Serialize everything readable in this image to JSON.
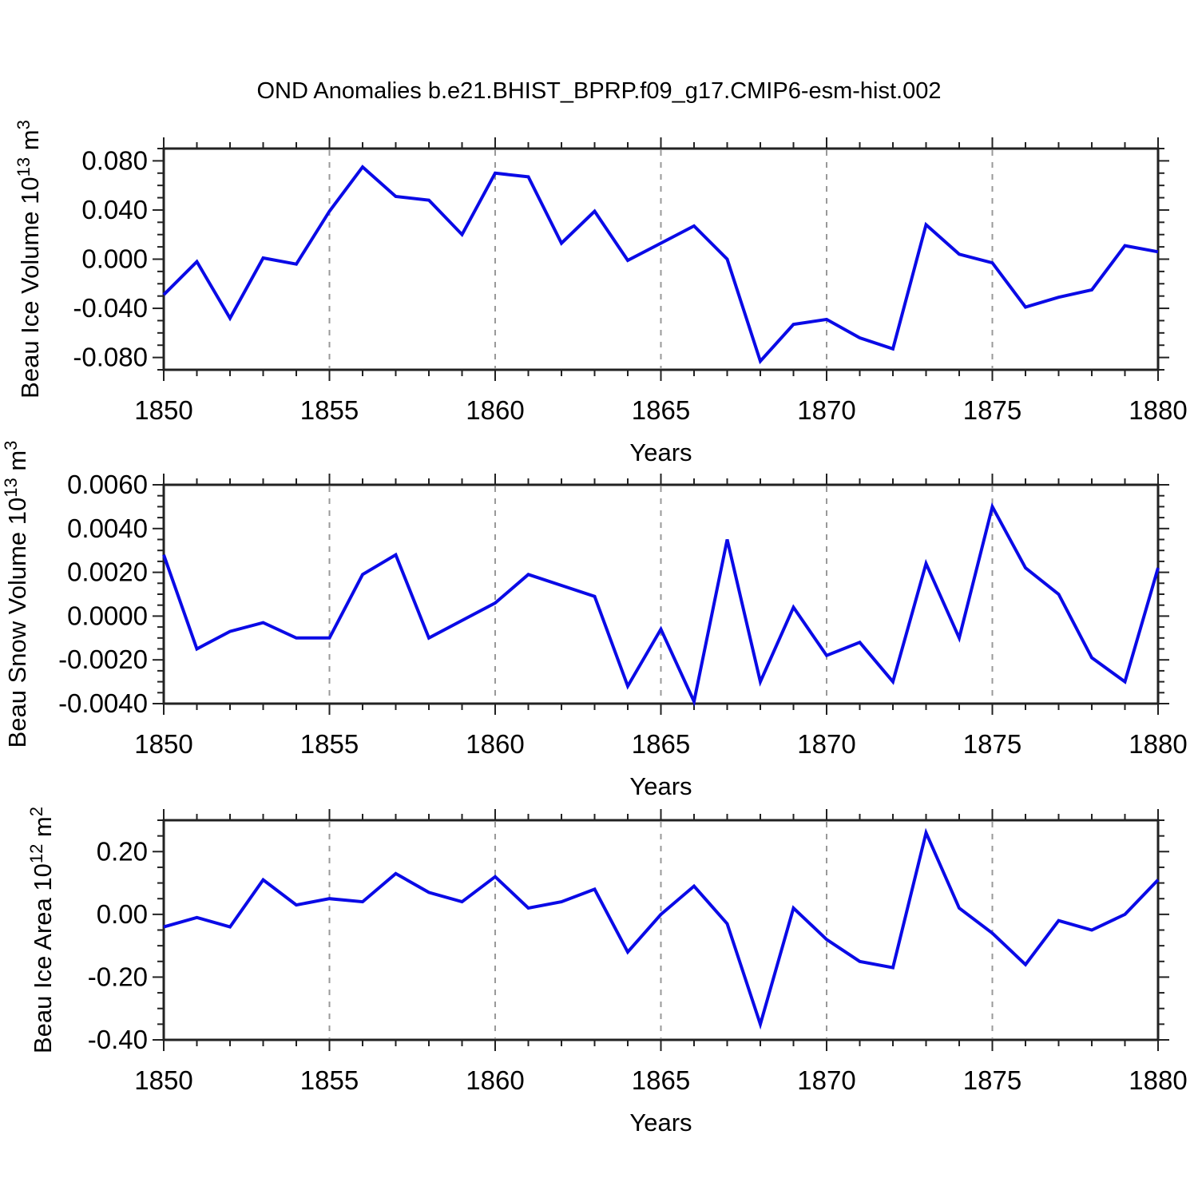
{
  "title": "OND Anomalies b.e21.BHIST_BPRP.f09_g17.CMIP6-esm-hist.002",
  "colors": {
    "line": "#0a0ae6",
    "grid": "#999999",
    "axis": "#222222",
    "text": "#000000"
  },
  "chart_data": {
    "type": "line",
    "title": "OND Anomalies b.e21.BHIST_BPRP.f09_g17.CMIP6-esm-hist.002",
    "xlabel": "Years",
    "x_years": [
      1850,
      1851,
      1852,
      1853,
      1854,
      1855,
      1856,
      1857,
      1858,
      1859,
      1860,
      1861,
      1862,
      1863,
      1864,
      1865,
      1866,
      1867,
      1868,
      1869,
      1870,
      1871,
      1872,
      1873,
      1874,
      1875,
      1876,
      1877,
      1878,
      1879,
      1880
    ],
    "xticks": {
      "values": [
        1850,
        1855,
        1860,
        1865,
        1870,
        1875,
        1880
      ],
      "labels": [
        "1850",
        "1855",
        "1860",
        "1865",
        "1870",
        "1875",
        "1880"
      ]
    },
    "grid_years": [
      1855,
      1860,
      1865,
      1870,
      1875
    ],
    "grid_style": "dashed-vertical",
    "legend": "none",
    "panels": [
      {
        "name": "beau-ice-volume",
        "ylabel_text": "Beau Ice Volume 10^13 m^3",
        "ylabel_parts": [
          {
            "t": "Beau Ice Volume 10"
          },
          {
            "t": "13",
            "sup": true
          },
          {
            "t": " m"
          },
          {
            "t": "3",
            "sup": true
          }
        ],
        "ylim": [
          -0.09,
          0.09
        ],
        "ytick_values": [
          0.08,
          0.04,
          0.0,
          -0.04,
          -0.08
        ],
        "ytick_labels": [
          "0.080",
          "0.040",
          "0.000",
          "-0.040",
          "-0.080"
        ],
        "minor_step": 0.01,
        "values": [
          -0.029,
          -0.002,
          -0.048,
          0.001,
          -0.004,
          0.039,
          0.075,
          0.051,
          0.048,
          0.02,
          0.07,
          0.067,
          0.013,
          0.039,
          -0.001,
          0.013,
          0.027,
          0.0,
          -0.083,
          -0.053,
          -0.049,
          -0.064,
          -0.073,
          0.028,
          0.004,
          -0.003,
          -0.039,
          -0.031,
          -0.025,
          0.011,
          0.006
        ]
      },
      {
        "name": "beau-snow-volume",
        "ylabel_text": "Beau Snow Volume 10^13 m^3",
        "ylabel_parts": [
          {
            "t": "Beau Snow Volume 10"
          },
          {
            "t": "13",
            "sup": true
          },
          {
            "t": " m"
          },
          {
            "t": "3",
            "sup": true
          }
        ],
        "ylim": [
          -0.004,
          0.006
        ],
        "ytick_values": [
          0.006,
          0.004,
          0.002,
          0.0,
          -0.002,
          -0.004
        ],
        "ytick_labels": [
          "0.0060",
          "0.0040",
          "0.0020",
          "0.0000",
          "-0.0020",
          "-0.0040"
        ],
        "minor_step": 0.0005,
        "values": [
          0.0028,
          -0.0015,
          -0.0007,
          -0.0003,
          -0.001,
          -0.001,
          0.0019,
          0.0028,
          -0.001,
          -0.0002,
          0.0006,
          0.0019,
          0.0014,
          0.0009,
          -0.0032,
          -0.0006,
          -0.0039,
          0.0035,
          -0.003,
          0.0004,
          -0.0018,
          -0.0012,
          -0.003,
          0.0024,
          -0.001,
          0.005,
          0.0022,
          0.001,
          -0.0019,
          -0.003,
          0.0022
        ]
      },
      {
        "name": "beau-ice-area",
        "ylabel_text": "Beau Ice Area 10^12 m^2",
        "ylabel_parts": [
          {
            "t": "Beau Ice Area 10"
          },
          {
            "t": "12",
            "sup": true
          },
          {
            "t": " m"
          },
          {
            "t": "2",
            "sup": true
          }
        ],
        "ylim": [
          -0.4,
          0.3
        ],
        "ytick_values": [
          0.2,
          0.0,
          -0.2,
          -0.4
        ],
        "ytick_labels": [
          "0.20",
          "0.00",
          "-0.20",
          "-0.40"
        ],
        "minor_step": 0.05,
        "values": [
          -0.04,
          -0.01,
          -0.04,
          0.11,
          0.03,
          0.05,
          0.04,
          0.13,
          0.07,
          0.04,
          0.12,
          0.02,
          0.04,
          0.08,
          -0.12,
          0.0,
          0.09,
          -0.03,
          -0.35,
          0.02,
          -0.08,
          -0.15,
          -0.17,
          0.26,
          0.02,
          -0.06,
          -0.16,
          -0.02,
          -0.05,
          0.0,
          0.11
        ]
      }
    ]
  }
}
